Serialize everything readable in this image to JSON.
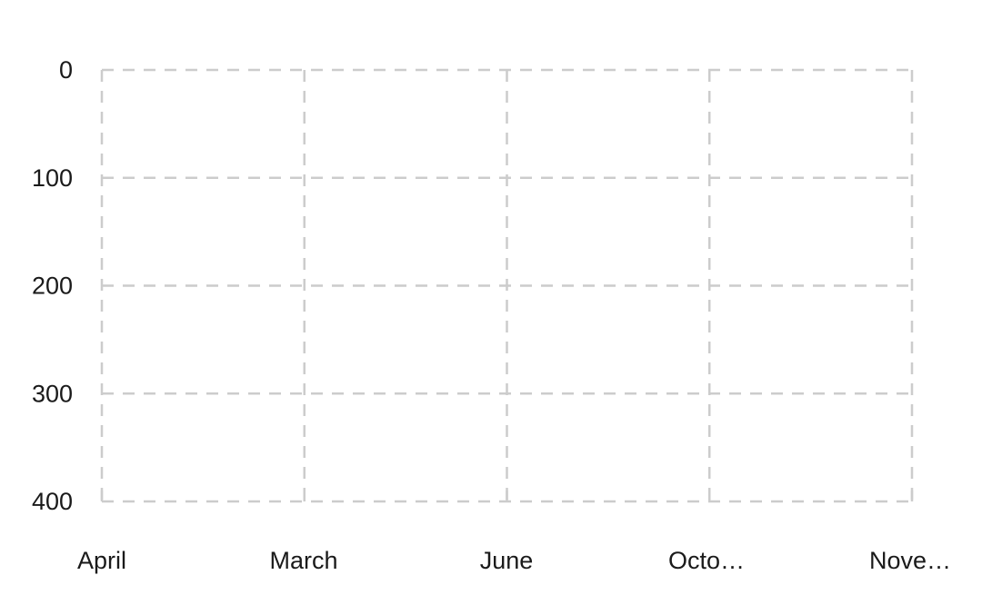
{
  "chart_data": {
    "type": "line",
    "categories": [
      "April",
      "March",
      "June",
      "Octo…",
      "Nove…"
    ],
    "series": [],
    "title": "",
    "xlabel": "",
    "ylabel": "",
    "ylim": [
      0,
      400
    ],
    "y_reversed": true,
    "yticks": [
      "0",
      "100",
      "200",
      "300",
      "400"
    ],
    "grid": true,
    "grid_style": "dashed",
    "grid_color": "#cccccc",
    "label_color": "#1a1a1a",
    "legend": "none"
  }
}
